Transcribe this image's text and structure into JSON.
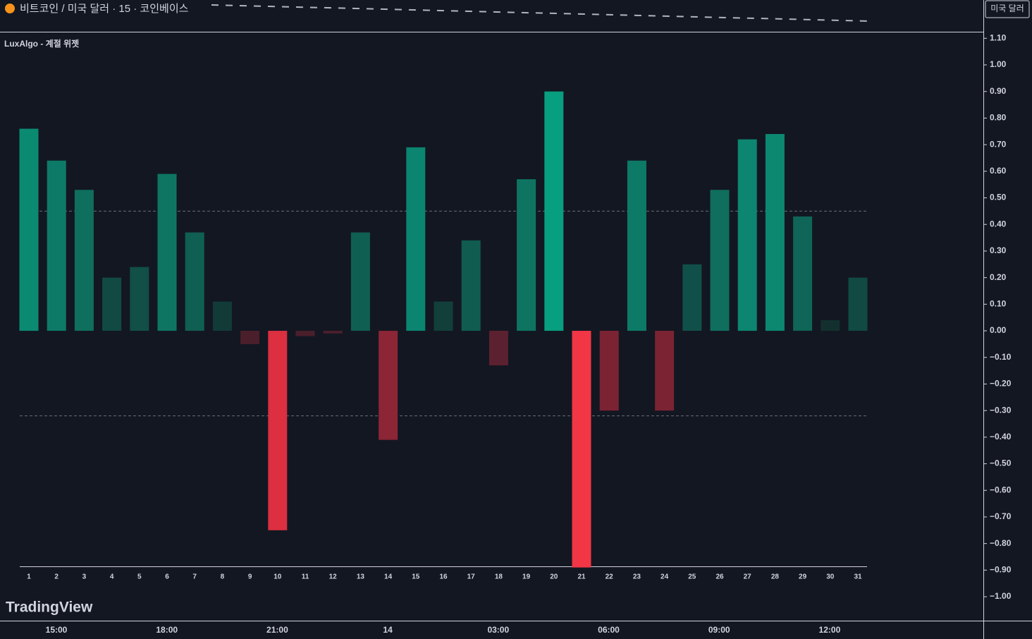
{
  "header": {
    "symbol_title": "비트코인 / 미국 달러 · 15 · 코인베이스",
    "currency_button": "미국 달러"
  },
  "chart_data": {
    "type": "bar",
    "title": "LuxAlgo - 계절 위젯",
    "categories": [
      "1",
      "2",
      "3",
      "4",
      "5",
      "6",
      "7",
      "8",
      "9",
      "10",
      "11",
      "12",
      "13",
      "14",
      "15",
      "16",
      "17",
      "18",
      "19",
      "20",
      "21",
      "22",
      "23",
      "24",
      "25",
      "26",
      "27",
      "28",
      "29",
      "30",
      "31"
    ],
    "values": [
      0.76,
      0.64,
      0.53,
      0.2,
      0.24,
      0.59,
      0.37,
      0.11,
      -0.05,
      -0.75,
      -0.02,
      -0.01,
      0.37,
      -0.41,
      0.69,
      0.11,
      0.34,
      -0.13,
      0.57,
      0.9,
      -0.89,
      -0.3,
      0.64,
      -0.3,
      0.25,
      0.53,
      0.72,
      0.74,
      0.43,
      0.04,
      0.2
    ],
    "colors": [
      "#0b8a72",
      "#0d7a67",
      "#0f6e5e",
      "#114a43",
      "#114f47",
      "#0e7563",
      "#105f53",
      "#123b37",
      "#4a1f2b",
      "#dc2f40",
      "#4a1f2b",
      "#4a1f2b",
      "#105f53",
      "#8c2535",
      "#0b8470",
      "#123f3a",
      "#105c51",
      "#5c2130",
      "#0e7461",
      "#089e80",
      "#f23645",
      "#7b2332",
      "#0d7a67",
      "#7b2332",
      "#11504a",
      "#0f6e5e",
      "#0c8670",
      "#0c8871",
      "#0f6557",
      "#13302f",
      "#114a43"
    ],
    "ylim": [
      -1.09,
      1.122
    ],
    "yticks": [
      {
        "value": 1.1,
        "label": "1.10"
      },
      {
        "value": 1.0,
        "label": "1.00"
      },
      {
        "value": 0.9,
        "label": "0.90"
      },
      {
        "value": 0.8,
        "label": "0.80"
      },
      {
        "value": 0.7,
        "label": "0.70"
      },
      {
        "value": 0.6,
        "label": "0.60"
      },
      {
        "value": 0.5,
        "label": "0.50"
      },
      {
        "value": 0.4,
        "label": "0.40"
      },
      {
        "value": 0.3,
        "label": "0.30"
      },
      {
        "value": 0.2,
        "label": "0.20"
      },
      {
        "value": 0.1,
        "label": "0.10"
      },
      {
        "value": 0,
        "label": "0.00"
      },
      {
        "value": -0.1,
        "label": "−0.10"
      },
      {
        "value": -0.2,
        "label": "−0.20"
      },
      {
        "value": -0.3,
        "label": "−0.30"
      },
      {
        "value": -0.4,
        "label": "−0.40"
      },
      {
        "value": -0.5,
        "label": "−0.50"
      },
      {
        "value": -0.6,
        "label": "−0.60"
      },
      {
        "value": -0.7,
        "label": "−0.70"
      },
      {
        "value": -0.8,
        "label": "−0.80"
      },
      {
        "value": -0.9,
        "label": "−0.90"
      },
      {
        "value": -1.0,
        "label": "−1.00"
      }
    ],
    "reference_lines": [
      0.45,
      -0.32
    ]
  },
  "time_axis": [
    "15:00",
    "18:00",
    "21:00",
    "14",
    "03:00",
    "06:00",
    "09:00",
    "12:00"
  ],
  "watermark": "TradingView"
}
